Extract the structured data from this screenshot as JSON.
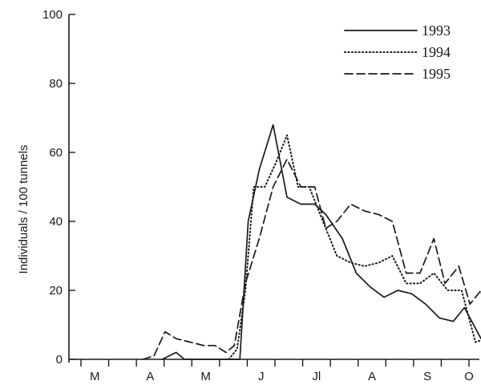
{
  "chart_data": {
    "type": "line",
    "ylabel": "Individuals / 100 tunnels",
    "xlabel": "",
    "ylim": [
      0,
      100
    ],
    "yticks": [
      0,
      20,
      40,
      60,
      80,
      100
    ],
    "xlim": [
      0,
      14
    ],
    "month_labels": [
      {
        "label": "M",
        "x": 0.5
      },
      {
        "label": "A",
        "x": 2.5
      },
      {
        "label": "M",
        "x": 4.5
      },
      {
        "label": "J",
        "x": 6.5
      },
      {
        "label": "Jl",
        "x": 8.5
      },
      {
        "label": "A",
        "x": 10.5
      },
      {
        "label": "S",
        "x": 12.5
      },
      {
        "label": "O",
        "x": 14.0
      }
    ],
    "legend_position": "top-right",
    "grid": false,
    "series": [
      {
        "name": "1993",
        "style": "solid",
        "points": [
          [
            2.5,
            0
          ],
          [
            3.0,
            2
          ],
          [
            3.3,
            0
          ],
          [
            5.3,
            0
          ],
          [
            5.6,
            40
          ],
          [
            6.0,
            55
          ],
          [
            6.5,
            68
          ],
          [
            7.0,
            47
          ],
          [
            7.5,
            45
          ],
          [
            8.0,
            45
          ],
          [
            8.4,
            42
          ],
          [
            9.0,
            35
          ],
          [
            9.5,
            25
          ],
          [
            10.0,
            21
          ],
          [
            10.5,
            18
          ],
          [
            11.0,
            20
          ],
          [
            11.5,
            19
          ],
          [
            12.0,
            16
          ],
          [
            12.5,
            12
          ],
          [
            13.0,
            11
          ],
          [
            13.4,
            15
          ],
          [
            14.0,
            6
          ]
        ]
      },
      {
        "name": "1994",
        "style": "dotted",
        "points": [
          [
            4.9,
            0
          ],
          [
            5.2,
            3
          ],
          [
            5.5,
            20
          ],
          [
            5.8,
            50
          ],
          [
            6.2,
            50
          ],
          [
            6.6,
            57
          ],
          [
            7.0,
            65
          ],
          [
            7.4,
            50
          ],
          [
            7.8,
            50
          ],
          [
            8.3,
            40
          ],
          [
            8.8,
            30
          ],
          [
            9.3,
            28
          ],
          [
            9.8,
            27
          ],
          [
            10.3,
            28
          ],
          [
            10.8,
            30
          ],
          [
            11.3,
            22
          ],
          [
            11.8,
            22
          ],
          [
            12.3,
            25
          ],
          [
            12.8,
            20
          ],
          [
            13.3,
            20
          ],
          [
            13.8,
            5
          ],
          [
            14.2,
            6
          ]
        ]
      },
      {
        "name": "1995",
        "style": "dashed",
        "points": [
          [
            1.8,
            0
          ],
          [
            2.2,
            1
          ],
          [
            2.6,
            8
          ],
          [
            3.0,
            6
          ],
          [
            3.5,
            5
          ],
          [
            4.0,
            4
          ],
          [
            4.4,
            4
          ],
          [
            4.8,
            2
          ],
          [
            5.1,
            4
          ],
          [
            5.5,
            22
          ],
          [
            6.0,
            35
          ],
          [
            6.5,
            50
          ],
          [
            7.0,
            58
          ],
          [
            7.5,
            50
          ],
          [
            8.0,
            50
          ],
          [
            8.4,
            38
          ],
          [
            8.8,
            40
          ],
          [
            9.3,
            45
          ],
          [
            9.8,
            43
          ],
          [
            10.3,
            42
          ],
          [
            10.8,
            40
          ],
          [
            11.3,
            25
          ],
          [
            11.8,
            25
          ],
          [
            12.3,
            35
          ],
          [
            12.7,
            22
          ],
          [
            13.2,
            27
          ],
          [
            13.6,
            16
          ],
          [
            14.0,
            20
          ],
          [
            14.3,
            4
          ]
        ]
      }
    ]
  }
}
